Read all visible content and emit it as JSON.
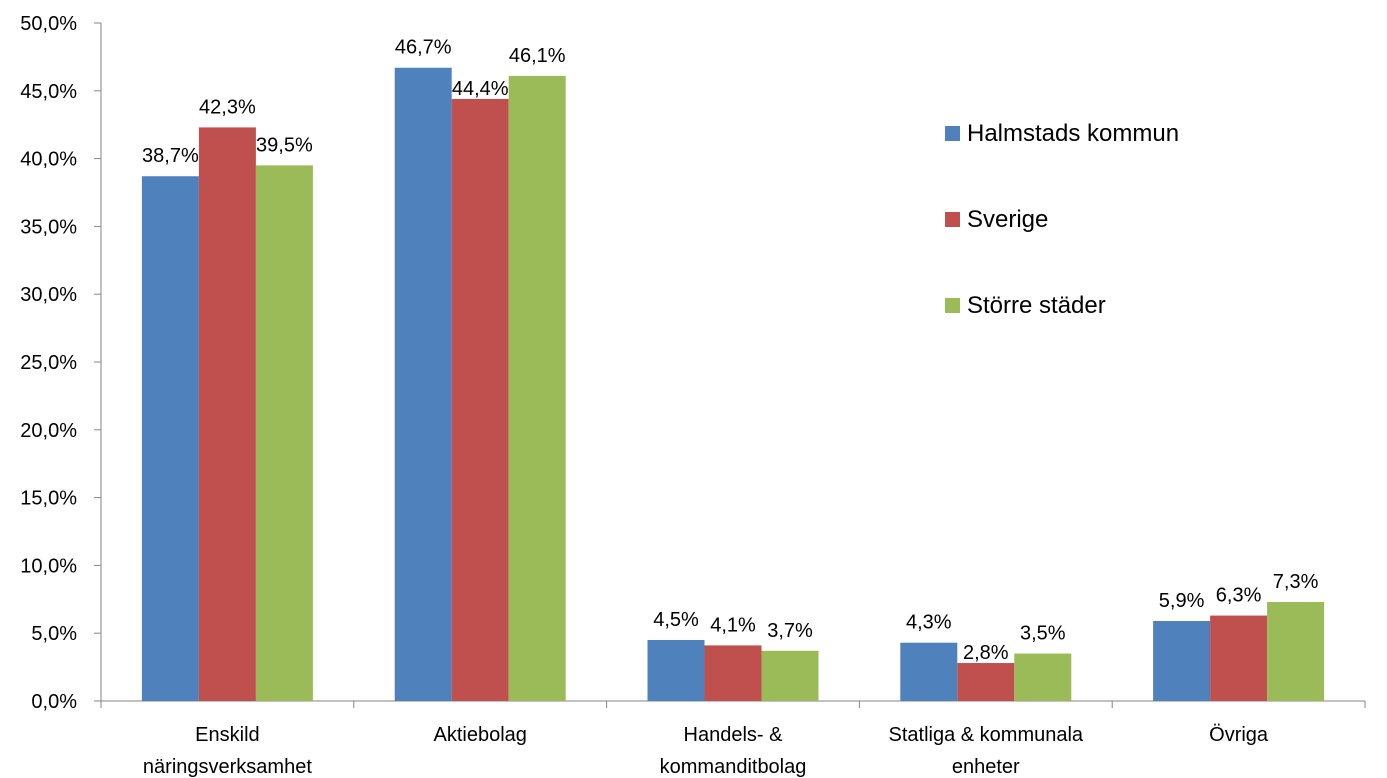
{
  "chart_data": {
    "type": "bar",
    "categories": [
      [
        "Enskild",
        "näringsverksamhet"
      ],
      [
        "Aktiebolag"
      ],
      [
        "Handels- &",
        "kommanditbolag"
      ],
      [
        "Statliga & kommunala",
        "enheter"
      ],
      [
        "Övriga"
      ]
    ],
    "series": [
      {
        "name": "Halmstads kommun",
        "color": "#4F81BD",
        "values": [
          38.7,
          46.7,
          4.5,
          4.3,
          5.9
        ],
        "labels": [
          "38,7%",
          "46,7%",
          "4,5%",
          "4,3%",
          "5,9%"
        ]
      },
      {
        "name": "Sverige",
        "color": "#C0504D",
        "values": [
          42.3,
          44.4,
          4.1,
          2.8,
          6.3
        ],
        "labels": [
          "42,3%",
          "44,4%",
          "4,1%",
          "2,8%",
          "6,3%"
        ]
      },
      {
        "name": "Större städer",
        "color": "#9BBB59",
        "values": [
          39.5,
          46.1,
          3.7,
          3.5,
          7.3
        ],
        "labels": [
          "39,5%",
          "46,1%",
          "3,7%",
          "3,5%",
          "7,3%"
        ]
      }
    ],
    "ylim": [
      0,
      50
    ],
    "yticks": [
      0,
      5,
      10,
      15,
      20,
      25,
      30,
      35,
      40,
      45,
      50
    ],
    "ytick_labels": [
      "0,0%",
      "5,0%",
      "10,0%",
      "15,0%",
      "20,0%",
      "25,0%",
      "30,0%",
      "35,0%",
      "40,0%",
      "45,0%",
      "50,0%"
    ],
    "grid": false,
    "legend_position": "right",
    "title": "",
    "xlabel": "",
    "ylabel": ""
  }
}
